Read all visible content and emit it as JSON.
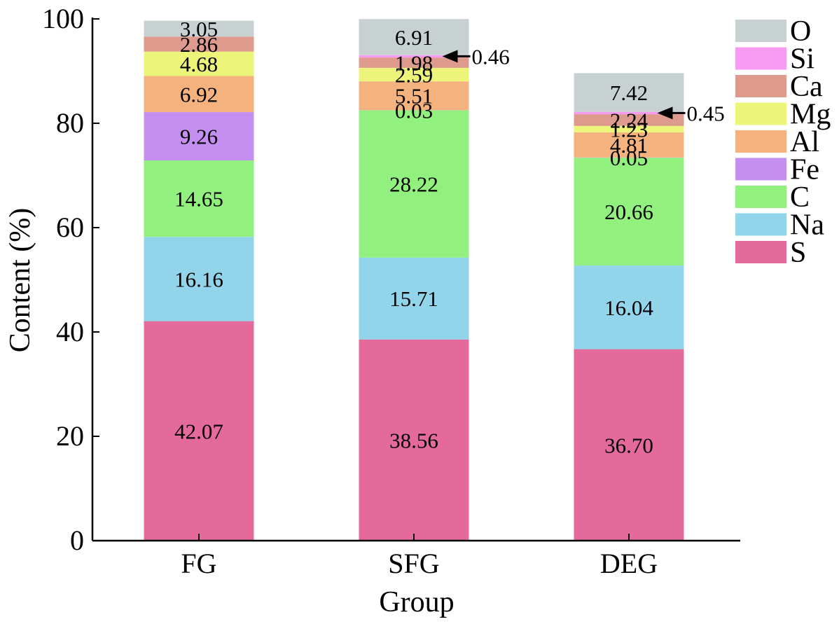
{
  "chart_data": {
    "type": "bar",
    "stacked": true,
    "title": "",
    "xlabel": "Group",
    "ylabel": "Content (%)",
    "ylim": [
      0,
      100
    ],
    "yticks": [
      0,
      20,
      40,
      60,
      80,
      100
    ],
    "categories": [
      "FG",
      "SFG",
      "DEG"
    ],
    "series": [
      {
        "name": "S",
        "color": "#e46a9b",
        "values": [
          42.07,
          38.56,
          36.7
        ],
        "labels": [
          "42.07",
          "38.56",
          "36.70"
        ]
      },
      {
        "name": "Na",
        "color": "#92d4ea",
        "values": [
          16.16,
          15.71,
          16.04
        ],
        "labels": [
          "16.16",
          "15.71",
          "16.04"
        ]
      },
      {
        "name": "C",
        "color": "#92f07f",
        "values": [
          14.65,
          28.22,
          20.66
        ],
        "labels": [
          "14.65",
          "28.22",
          "20.66"
        ]
      },
      {
        "name": "Fe",
        "color": "#c48ff0",
        "values": [
          9.26,
          0.03,
          0.05
        ],
        "labels": [
          "9.26",
          "0.03",
          "0.05"
        ]
      },
      {
        "name": "Al",
        "color": "#f4b27e",
        "values": [
          6.92,
          5.51,
          4.81
        ],
        "labels": [
          "6.92",
          "5.51",
          "4.81"
        ]
      },
      {
        "name": "Mg",
        "color": "#ecf47a",
        "values": [
          4.68,
          2.59,
          1.23
        ],
        "labels": [
          "4.68",
          "2.59",
          "1.23"
        ]
      },
      {
        "name": "Ca",
        "color": "#de9a8c",
        "values": [
          2.86,
          1.98,
          2.24
        ],
        "labels": [
          "2.86",
          "1.98",
          "2.24"
        ]
      },
      {
        "name": "Si",
        "color": "#f79af2",
        "values": [
          0,
          0.46,
          0.45
        ],
        "labels": [
          "",
          "",
          ""
        ]
      },
      {
        "name": "O",
        "color": "#c8d1d1",
        "values": [
          3.05,
          6.91,
          7.42
        ],
        "labels": [
          "3.05",
          "6.91",
          "7.42"
        ]
      }
    ],
    "annotations": [
      {
        "category": "SFG",
        "series": "Si",
        "text": "0.46"
      },
      {
        "category": "DEG",
        "series": "Si",
        "text": "0.45"
      }
    ],
    "legend": {
      "position": "right",
      "order": [
        "O",
        "Si",
        "Ca",
        "Mg",
        "Al",
        "Fe",
        "C",
        "Na",
        "S"
      ]
    },
    "grid": false
  }
}
